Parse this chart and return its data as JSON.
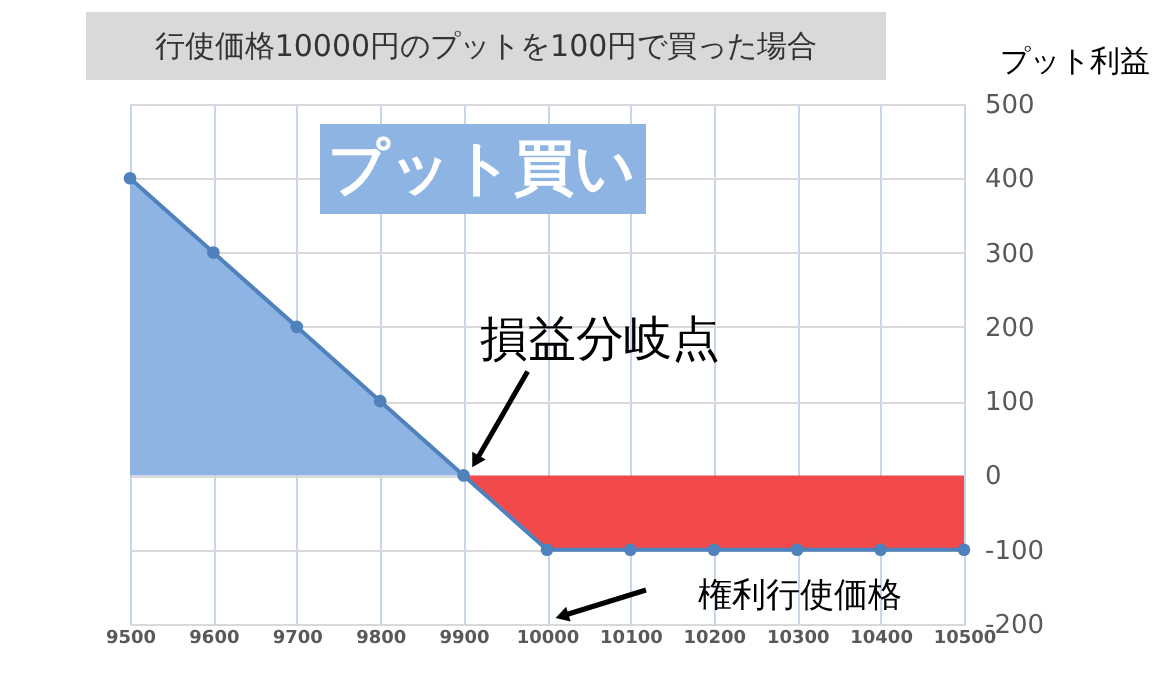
{
  "chart_data": {
    "type": "area",
    "title": "行使価格10000円のプットを100円で買った場合",
    "ylabel": "プット利益",
    "x": [
      9500,
      9600,
      9700,
      9800,
      9900,
      10000,
      10100,
      10200,
      10300,
      10400,
      10500
    ],
    "series": [
      {
        "color": "#8eb4e3",
        "values": [
          400,
          300,
          200,
          100,
          0,
          null,
          null,
          null,
          null,
          null,
          null
        ]
      },
      {
        "color": "#f24a4a",
        "values": [
          null,
          null,
          null,
          null,
          0,
          -100,
          -100,
          -100,
          -100,
          -100,
          -100
        ]
      },
      {
        "type": "line",
        "color": "#4f81bd",
        "marker": "circle",
        "values": [
          400,
          300,
          200,
          100,
          0,
          -100,
          -100,
          -100,
          -100,
          -100,
          -100
        ]
      }
    ],
    "xlim": [
      9500,
      10500
    ],
    "xticks": [
      9500,
      9600,
      9700,
      9800,
      9900,
      10000,
      10100,
      10200,
      10300,
      10400,
      10500
    ],
    "ylim": [
      -200,
      500
    ],
    "yticks": [
      -200,
      -100,
      0,
      100,
      200,
      300,
      400,
      500
    ],
    "grid": true,
    "annotations": [
      "プット買い",
      {
        "text": "損益分岐点",
        "x": 9900,
        "y": 0
      },
      "権利行使価格"
    ]
  }
}
